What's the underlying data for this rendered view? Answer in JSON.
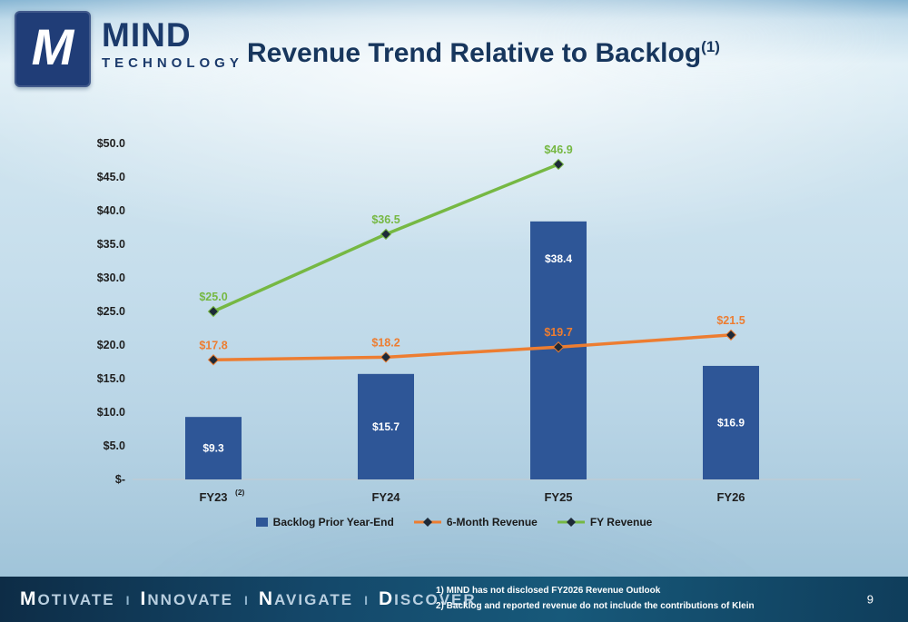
{
  "header": {
    "logo_letter": "M",
    "brand_name": "MIND",
    "brand_subtitle": "TECHNOLOGY",
    "title": "Revenue Trend Relative to Backlog",
    "title_superscript": "(1)"
  },
  "chart_data": {
    "type": "bar",
    "subtype": "combo-bar-line",
    "categories": [
      "FY23",
      "FY24",
      "FY25",
      "FY26"
    ],
    "category_superscripts": [
      "(2)",
      "",
      "",
      ""
    ],
    "y_ticks": [
      "$50.0",
      "$45.0",
      "$40.0",
      "$35.0",
      "$30.0",
      "$25.0",
      "$20.0",
      "$15.0",
      "$10.0",
      "$5.0",
      "$-"
    ],
    "ylim": [
      0,
      50
    ],
    "grid": "baseline-only",
    "legend_position": "bottom",
    "marker_color": "#1e2a38",
    "series": [
      {
        "name": "Backlog Prior Year-End",
        "type": "bar",
        "color": "#2e5697",
        "values": [
          9.3,
          15.7,
          38.4,
          16.9
        ],
        "labels": [
          "$9.3",
          "$15.7",
          "$38.4",
          "$16.9"
        ]
      },
      {
        "name": "6-Month Revenue",
        "type": "line",
        "color": "#ed7d31",
        "values": [
          17.8,
          18.2,
          19.7,
          21.5
        ],
        "labels": [
          "$17.8",
          "$18.2",
          "$19.7",
          "$21.5"
        ]
      },
      {
        "name": "FY Revenue",
        "type": "line",
        "color": "#76b843",
        "values": [
          25.0,
          36.5,
          46.9,
          null
        ],
        "labels": [
          "$25.0",
          "$36.5",
          "$46.9",
          ""
        ]
      }
    ]
  },
  "footer": {
    "motto_words": [
      "MOTIVATE",
      "INNOVATE",
      "NAVIGATE",
      "DISCOVER"
    ],
    "separator": "I",
    "footnotes": [
      "1) MIND has not disclosed FY2026 Revenue Outlook",
      "2) Backlog and reported revenue do not include the contributions of Klein"
    ],
    "page_number": "9"
  }
}
